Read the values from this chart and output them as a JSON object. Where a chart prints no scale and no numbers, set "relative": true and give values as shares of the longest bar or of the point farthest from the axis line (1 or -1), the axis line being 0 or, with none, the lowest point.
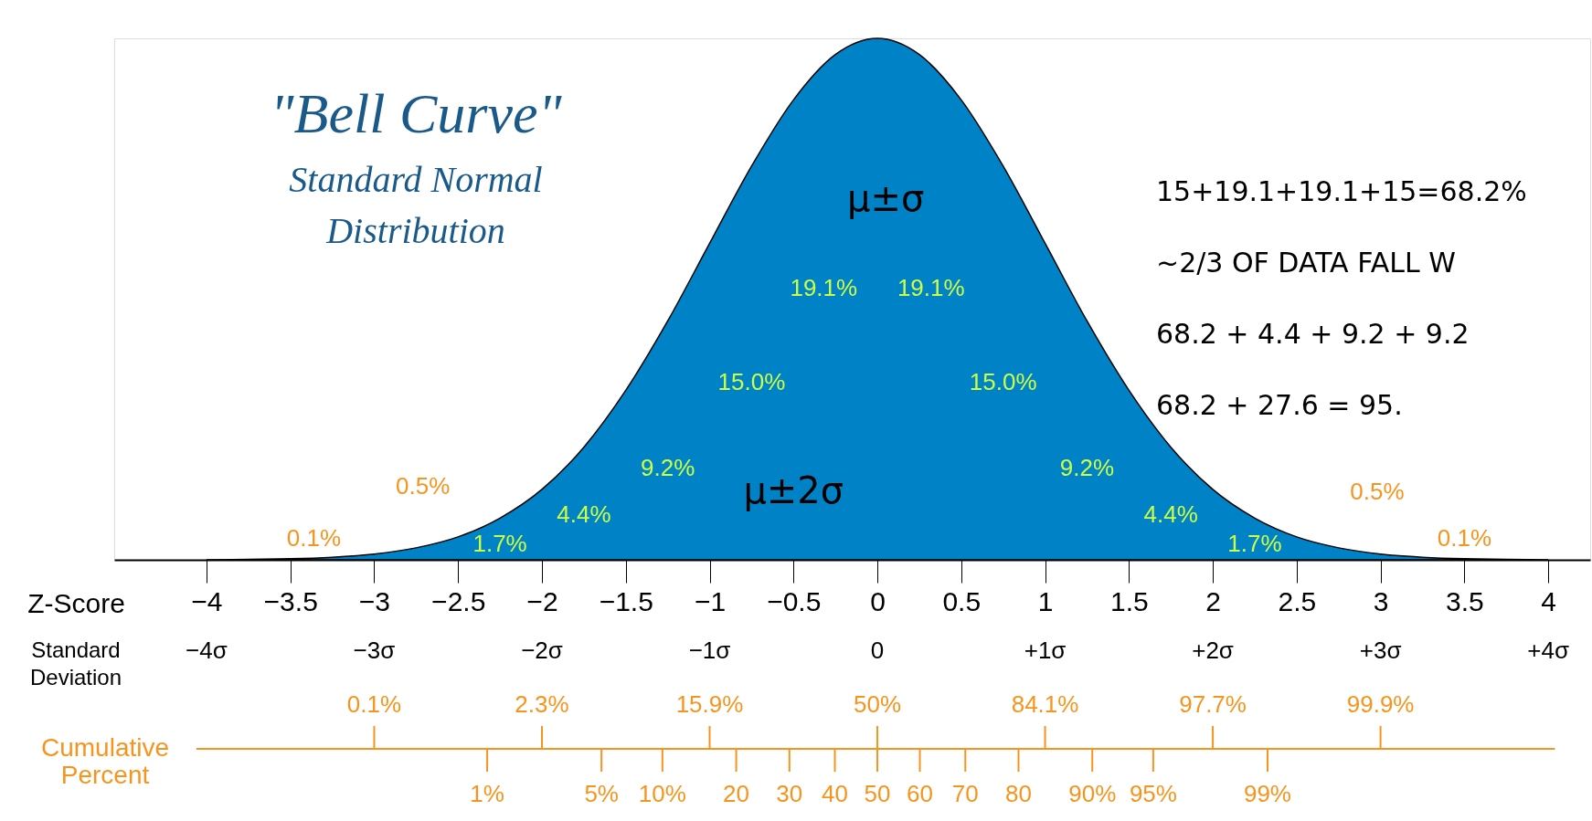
{
  "chart_data": {
    "type": "area",
    "title": "\"Bell Curve\"",
    "subtitle": "Standard Normal Distribution",
    "xlabel": "Z-Score",
    "relative": true,
    "grid": false,
    "x": [
      -4,
      -3.75,
      -3.5,
      -3.25,
      -3,
      -2.75,
      -2.5,
      -2.25,
      -2,
      -1.75,
      -1.5,
      -1.25,
      -1,
      -0.75,
      -0.5,
      -0.25,
      0,
      0.25,
      0.5,
      0.75,
      1,
      1.25,
      1.5,
      1.75,
      2,
      2.25,
      2.5,
      2.75,
      3,
      3.25,
      3.5,
      3.75,
      4
    ],
    "series": [
      {
        "color": "#0082c6",
        "values": [
          0,
          0.001,
          0.002,
          0.005,
          0.011,
          0.023,
          0.044,
          0.08,
          0.135,
          0.216,
          0.325,
          0.458,
          0.607,
          0.755,
          0.882,
          0.969,
          1,
          0.969,
          0.882,
          0.755,
          0.607,
          0.458,
          0.325,
          0.216,
          0.135,
          0.08,
          0.044,
          0.023,
          0.011,
          0.005,
          0.002,
          0.001,
          0
        ]
      }
    ],
    "xlim": [
      -4.55,
      4.25
    ],
    "xticks": [
      {
        "value": -4,
        "label": "−4"
      },
      {
        "value": -3.5,
        "label": "−3.5"
      },
      {
        "value": -3,
        "label": "−3"
      },
      {
        "value": -2.5,
        "label": "−2.5"
      },
      {
        "value": -2,
        "label": "−2"
      },
      {
        "value": -1.5,
        "label": "−1.5"
      },
      {
        "value": -1,
        "label": "−1"
      },
      {
        "value": -0.5,
        "label": "−0.5"
      },
      0,
      0.5,
      1,
      1.5,
      2,
      2.5,
      3,
      3.5,
      4
    ],
    "annotations": [
      "Standard Deviation",
      "−4σ",
      "−3σ",
      "−2σ",
      "−1σ",
      "0",
      "+1σ",
      "+2σ",
      "+3σ",
      "+4σ",
      "μ±σ",
      "μ±2σ",
      "19.1%",
      "19.1%",
      "15.0%",
      "15.0%",
      "9.2%",
      "9.2%",
      "4.4%",
      "4.4%",
      "1.7%",
      "1.7%",
      "0.5%",
      "0.5%",
      "0.1%",
      "0.1%",
      "Cumulative Percent",
      "0.1%",
      "2.3%",
      "15.9%",
      "50%",
      "84.1%",
      "97.7%",
      "99.9%",
      "1%",
      "5%",
      "10%",
      "20",
      "30",
      "40",
      "50",
      "60",
      "70",
      "80",
      "90%",
      "95%",
      "99%",
      "15+19.1+19.1+15=68.2%",
      "~2/3 OF DATA FALL W",
      "68.2 + 4.4 + 9.2 + 9.2",
      "68.2 + 27.6 = 95."
    ]
  }
}
